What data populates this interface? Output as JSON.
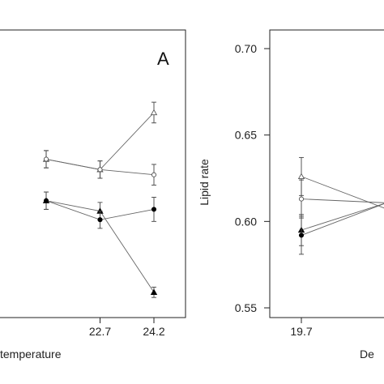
{
  "chart_data": [
    {
      "type": "line",
      "panel_label": "A",
      "xlabel": "temperature",
      "ylabel": "",
      "x_ticks": [
        "22.7",
        "24.2"
      ],
      "ylim": [
        0.55,
        0.7
      ],
      "grid": false,
      "series": [
        {
          "marker": "open-triangle",
          "x": [
            21.2,
            22.7,
            24.2
          ],
          "y": [
            0.636,
            0.63,
            0.663
          ],
          "err": [
            0.005,
            0.005,
            0.006
          ]
        },
        {
          "marker": "open-circle",
          "x": [
            21.2,
            22.7,
            24.2
          ],
          "y": [
            0.636,
            0.63,
            0.627
          ],
          "err": [
            0.005,
            0.005,
            0.006
          ]
        },
        {
          "marker": "filled-triangle",
          "x": [
            21.2,
            22.7,
            24.2
          ],
          "y": [
            0.612,
            0.606,
            0.559
          ],
          "err": [
            0.005,
            0.005,
            0.003
          ]
        },
        {
          "marker": "filled-circle",
          "x": [
            21.2,
            22.7,
            24.2
          ],
          "y": [
            0.612,
            0.601,
            0.607
          ],
          "err": [
            0.005,
            0.005,
            0.007
          ]
        }
      ]
    },
    {
      "type": "line",
      "panel_label": "",
      "xlabel": "De",
      "ylabel": "Lipid rate",
      "x_ticks": [
        "19.7"
      ],
      "y_ticks": [
        "0.55",
        "0.60",
        "0.65",
        "0.70"
      ],
      "ylim": [
        0.55,
        0.7
      ],
      "grid": false,
      "series": [
        {
          "marker": "open-triangle",
          "x": [
            19.7,
            21.2
          ],
          "y": [
            0.626,
            0.601
          ],
          "err": [
            0.011,
            0.0
          ]
        },
        {
          "marker": "open-circle",
          "x": [
            19.7,
            21.2
          ],
          "y": [
            0.613,
            0.61
          ],
          "err": [
            0.011,
            0.0
          ]
        },
        {
          "marker": "filled-triangle",
          "x": [
            19.7,
            21.2
          ],
          "y": [
            0.595,
            0.616
          ],
          "err": [
            0.009,
            0.0
          ]
        },
        {
          "marker": "filled-circle",
          "x": [
            19.7,
            21.2
          ],
          "y": [
            0.592,
            0.617
          ],
          "err": [
            0.011,
            0.0
          ]
        }
      ]
    }
  ]
}
